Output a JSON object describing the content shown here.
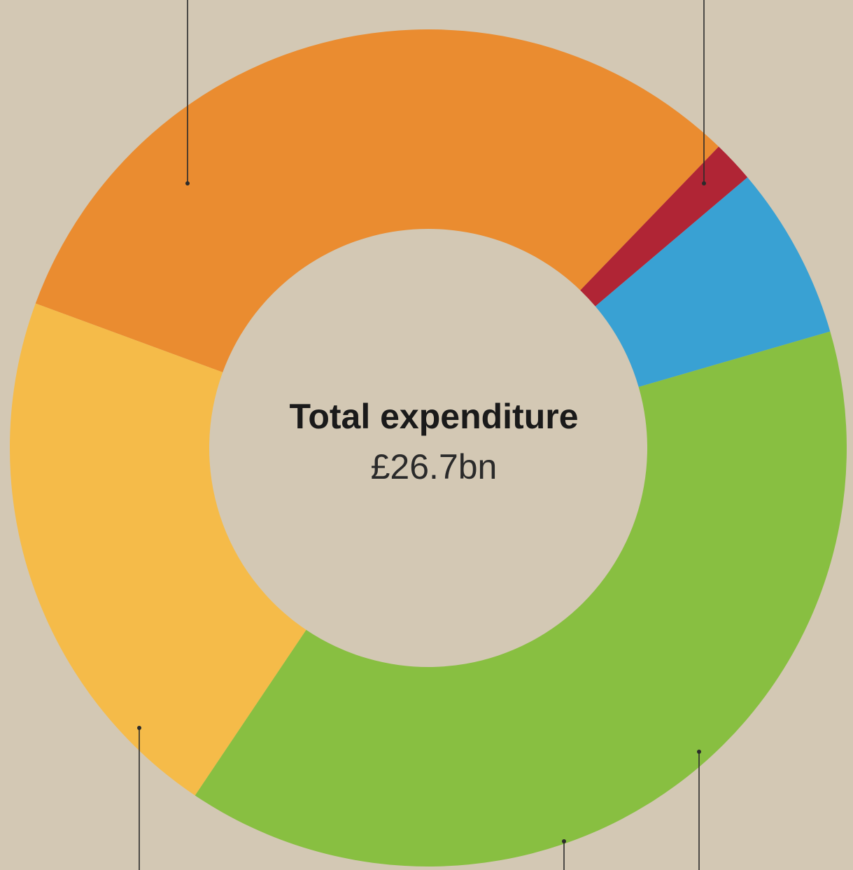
{
  "chart_data": {
    "type": "pie",
    "donut": true,
    "legend": "none",
    "center_label": "Total expenditure",
    "center_value": "£26.7bn",
    "background": "#d3c8b4",
    "slices": [
      {
        "value": 31.6,
        "color": "#ea8c30"
      },
      {
        "value": 1.6,
        "color": "#b02535"
      },
      {
        "value": 6.7,
        "color": "#39a1d3"
      },
      {
        "value": 38.9,
        "color": "#88bf41"
      },
      {
        "value": 21.2,
        "color": "#f5bb49"
      }
    ]
  }
}
